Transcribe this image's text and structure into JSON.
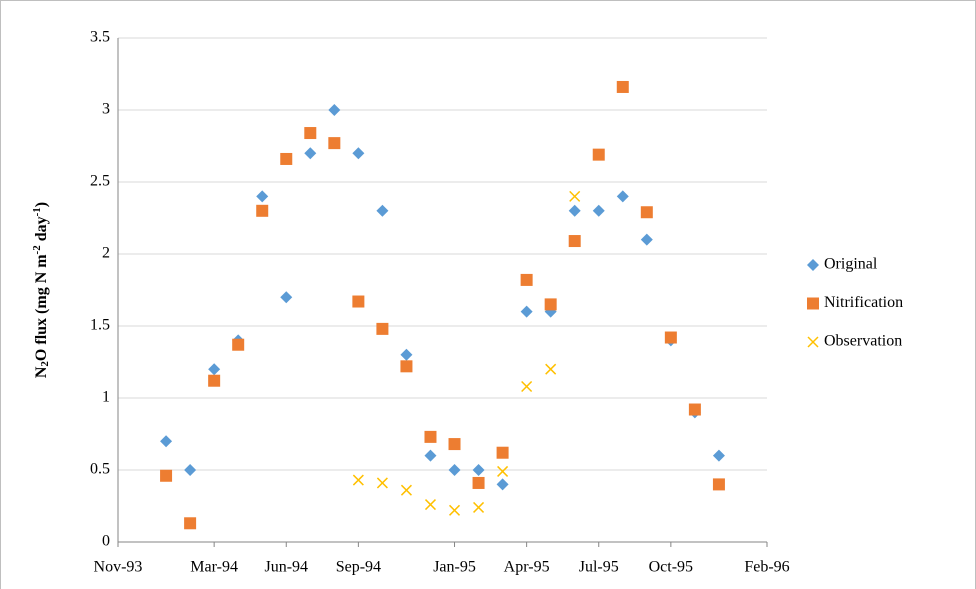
{
  "chart_data": {
    "type": "scatter",
    "ylabel": [
      "N",
      "2",
      "O flux (mg N m",
      "-2",
      " day",
      "-1",
      ")"
    ],
    "x": [
      "1994-01",
      "1994-02",
      "1994-03",
      "1994-04",
      "1994-05",
      "1994-06",
      "1994-07",
      "1994-08",
      "1994-09",
      "1994-10",
      "1994-11",
      "1994-12",
      "1995-01",
      "1995-02",
      "1995-03",
      "1995-04",
      "1995-05",
      "1995-06",
      "1995-07",
      "1995-08",
      "1995-09",
      "1995-10",
      "1995-11",
      "1995-12"
    ],
    "series": [
      {
        "name": "Original",
        "color": "#5b9bd5",
        "marker": "diamond",
        "values": [
          0.7,
          0.5,
          1.2,
          1.4,
          2.4,
          1.7,
          2.7,
          3.0,
          2.7,
          2.3,
          1.3,
          0.6,
          0.5,
          0.5,
          0.4,
          1.6,
          1.6,
          2.3,
          2.3,
          2.4,
          2.1,
          1.4,
          0.9,
          0.6
        ]
      },
      {
        "name": "Nitrification",
        "color": "#ed7d31",
        "marker": "square",
        "values": [
          0.46,
          0.13,
          1.12,
          1.37,
          2.3,
          2.66,
          2.84,
          2.77,
          1.67,
          1.48,
          1.22,
          0.73,
          0.68,
          0.41,
          0.62,
          1.82,
          1.65,
          2.09,
          2.69,
          3.16,
          2.29,
          1.42,
          0.92,
          0.4
        ]
      },
      {
        "name": "Observation",
        "color": "#ffc000",
        "marker": "x",
        "values": [
          null,
          null,
          null,
          null,
          null,
          null,
          null,
          null,
          0.43,
          0.41,
          0.36,
          0.26,
          0.22,
          0.24,
          0.49,
          1.08,
          1.2,
          2.4,
          null,
          null,
          null,
          null,
          null,
          null
        ]
      }
    ],
    "xlim": [
      "1993-11",
      "1996-02"
    ],
    "xticks": [
      {
        "value": "1993-11",
        "label": "Nov-93"
      },
      {
        "value": "1994-03",
        "label": "Mar-94"
      },
      {
        "value": "1994-06",
        "label": "Jun-94"
      },
      {
        "value": "1994-09",
        "label": "Sep-94"
      },
      {
        "value": "1995-01",
        "label": "Jan-95"
      },
      {
        "value": "1995-04",
        "label": "Apr-95"
      },
      {
        "value": "1995-07",
        "label": "Jul-95"
      },
      {
        "value": "1995-10",
        "label": "Oct-95"
      },
      {
        "value": "1996-02",
        "label": "Feb-96"
      }
    ],
    "ylim": [
      0,
      3.5
    ],
    "yticks": [
      0,
      0.5,
      1,
      1.5,
      2,
      2.5,
      3,
      3.5
    ],
    "grid": true,
    "legend": "right"
  }
}
